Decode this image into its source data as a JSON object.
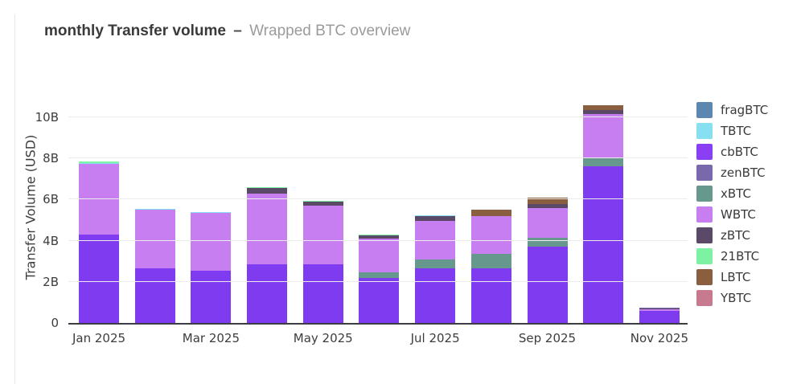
{
  "title": {
    "main": "monthly Transfer volume",
    "separator": "–",
    "subtitle": "Wrapped BTC overview"
  },
  "y_axis": {
    "label": "Transfer Volume (USD)",
    "ticks": [
      "0",
      "2B",
      "4B",
      "6B",
      "8B",
      "10B"
    ],
    "tick_values": [
      0,
      2,
      4,
      6,
      8,
      10
    ]
  },
  "x_axis": {
    "visible_labels": [
      "Jan 2025",
      "Mar 2025",
      "May 2025",
      "Jul 2025",
      "Sep 2025",
      "Nov 2025"
    ]
  },
  "legend": [
    {
      "label": "fragBTC",
      "color": "#5b87b0"
    },
    {
      "label": "TBTC",
      "color": "#87dff2"
    },
    {
      "label": "cbBTC",
      "color": "#8a3ff5"
    },
    {
      "label": "zenBTC",
      "color": "#7a68ad"
    },
    {
      "label": "xBTC",
      "color": "#67988e"
    },
    {
      "label": "WBTC",
      "color": "#c77ef0"
    },
    {
      "label": "zBTC",
      "color": "#5a4a68"
    },
    {
      "label": "21BTC",
      "color": "#7ef2a3"
    },
    {
      "label": "LBTC",
      "color": "#8a5f3f"
    },
    {
      "label": "YBTC",
      "color": "#c7798f"
    }
  ],
  "chart_data": {
    "type": "bar",
    "stacked": true,
    "title": "monthly Transfer volume – Wrapped BTC overview",
    "xlabel": "",
    "ylabel": "Transfer Volume (USD)",
    "unit": "billions USD",
    "ylim": [
      0,
      11.2
    ],
    "grid": true,
    "legend_position": "right",
    "categories": [
      "Jan 2025",
      "Feb 2025",
      "Mar 2025",
      "Apr 2025",
      "May 2025",
      "Jun 2025",
      "Jul 2025",
      "Aug 2025",
      "Sep 2025",
      "Oct 2025",
      "Nov 2025"
    ],
    "stack_order": "bottom_to_top",
    "series": [
      {
        "name": "cbBTC",
        "color": "#7f3bf0",
        "values": [
          4.3,
          2.65,
          2.55,
          2.85,
          2.85,
          2.2,
          2.65,
          2.65,
          3.7,
          7.6,
          0.6
        ]
      },
      {
        "name": "xBTC",
        "color": "#67988e",
        "values": [
          0,
          0,
          0,
          0,
          0,
          0.25,
          0.45,
          0.7,
          0.45,
          0.45,
          0
        ]
      },
      {
        "name": "WBTC",
        "color": "#c77ef0",
        "values": [
          3.45,
          2.85,
          2.8,
          3.45,
          2.85,
          1.65,
          1.85,
          1.85,
          1.45,
          2.1,
          0.05
        ]
      },
      {
        "name": "zBTC",
        "color": "#5a4a68",
        "values": [
          0,
          0,
          0,
          0.25,
          0.2,
          0.15,
          0.25,
          0,
          0.2,
          0.2,
          0.04
        ]
      },
      {
        "name": "zenBTC",
        "color": "#7a68ad",
        "values": [
          0,
          0,
          0,
          0,
          0,
          0,
          0,
          0,
          0,
          0,
          0.04
        ]
      },
      {
        "name": "TBTC",
        "color": "#87dff2",
        "values": [
          0.04,
          0.05,
          0.05,
          0,
          0,
          0,
          0.05,
          0,
          0,
          0,
          0
        ]
      },
      {
        "name": "21BTC",
        "color": "#7ef2a3",
        "values": [
          0.05,
          0,
          0,
          0.05,
          0.05,
          0.05,
          0,
          0,
          0,
          0,
          0
        ]
      },
      {
        "name": "LBTC",
        "color": "#8a5f3f",
        "values": [
          0,
          0,
          0,
          0,
          0,
          0,
          0,
          0.3,
          0.3,
          0.25,
          0
        ]
      }
    ],
    "totals": [
      7.84,
      5.55,
      5.4,
      6.6,
      5.95,
      4.3,
      5.25,
      5.5,
      6.1,
      10.6,
      0.73
    ]
  }
}
